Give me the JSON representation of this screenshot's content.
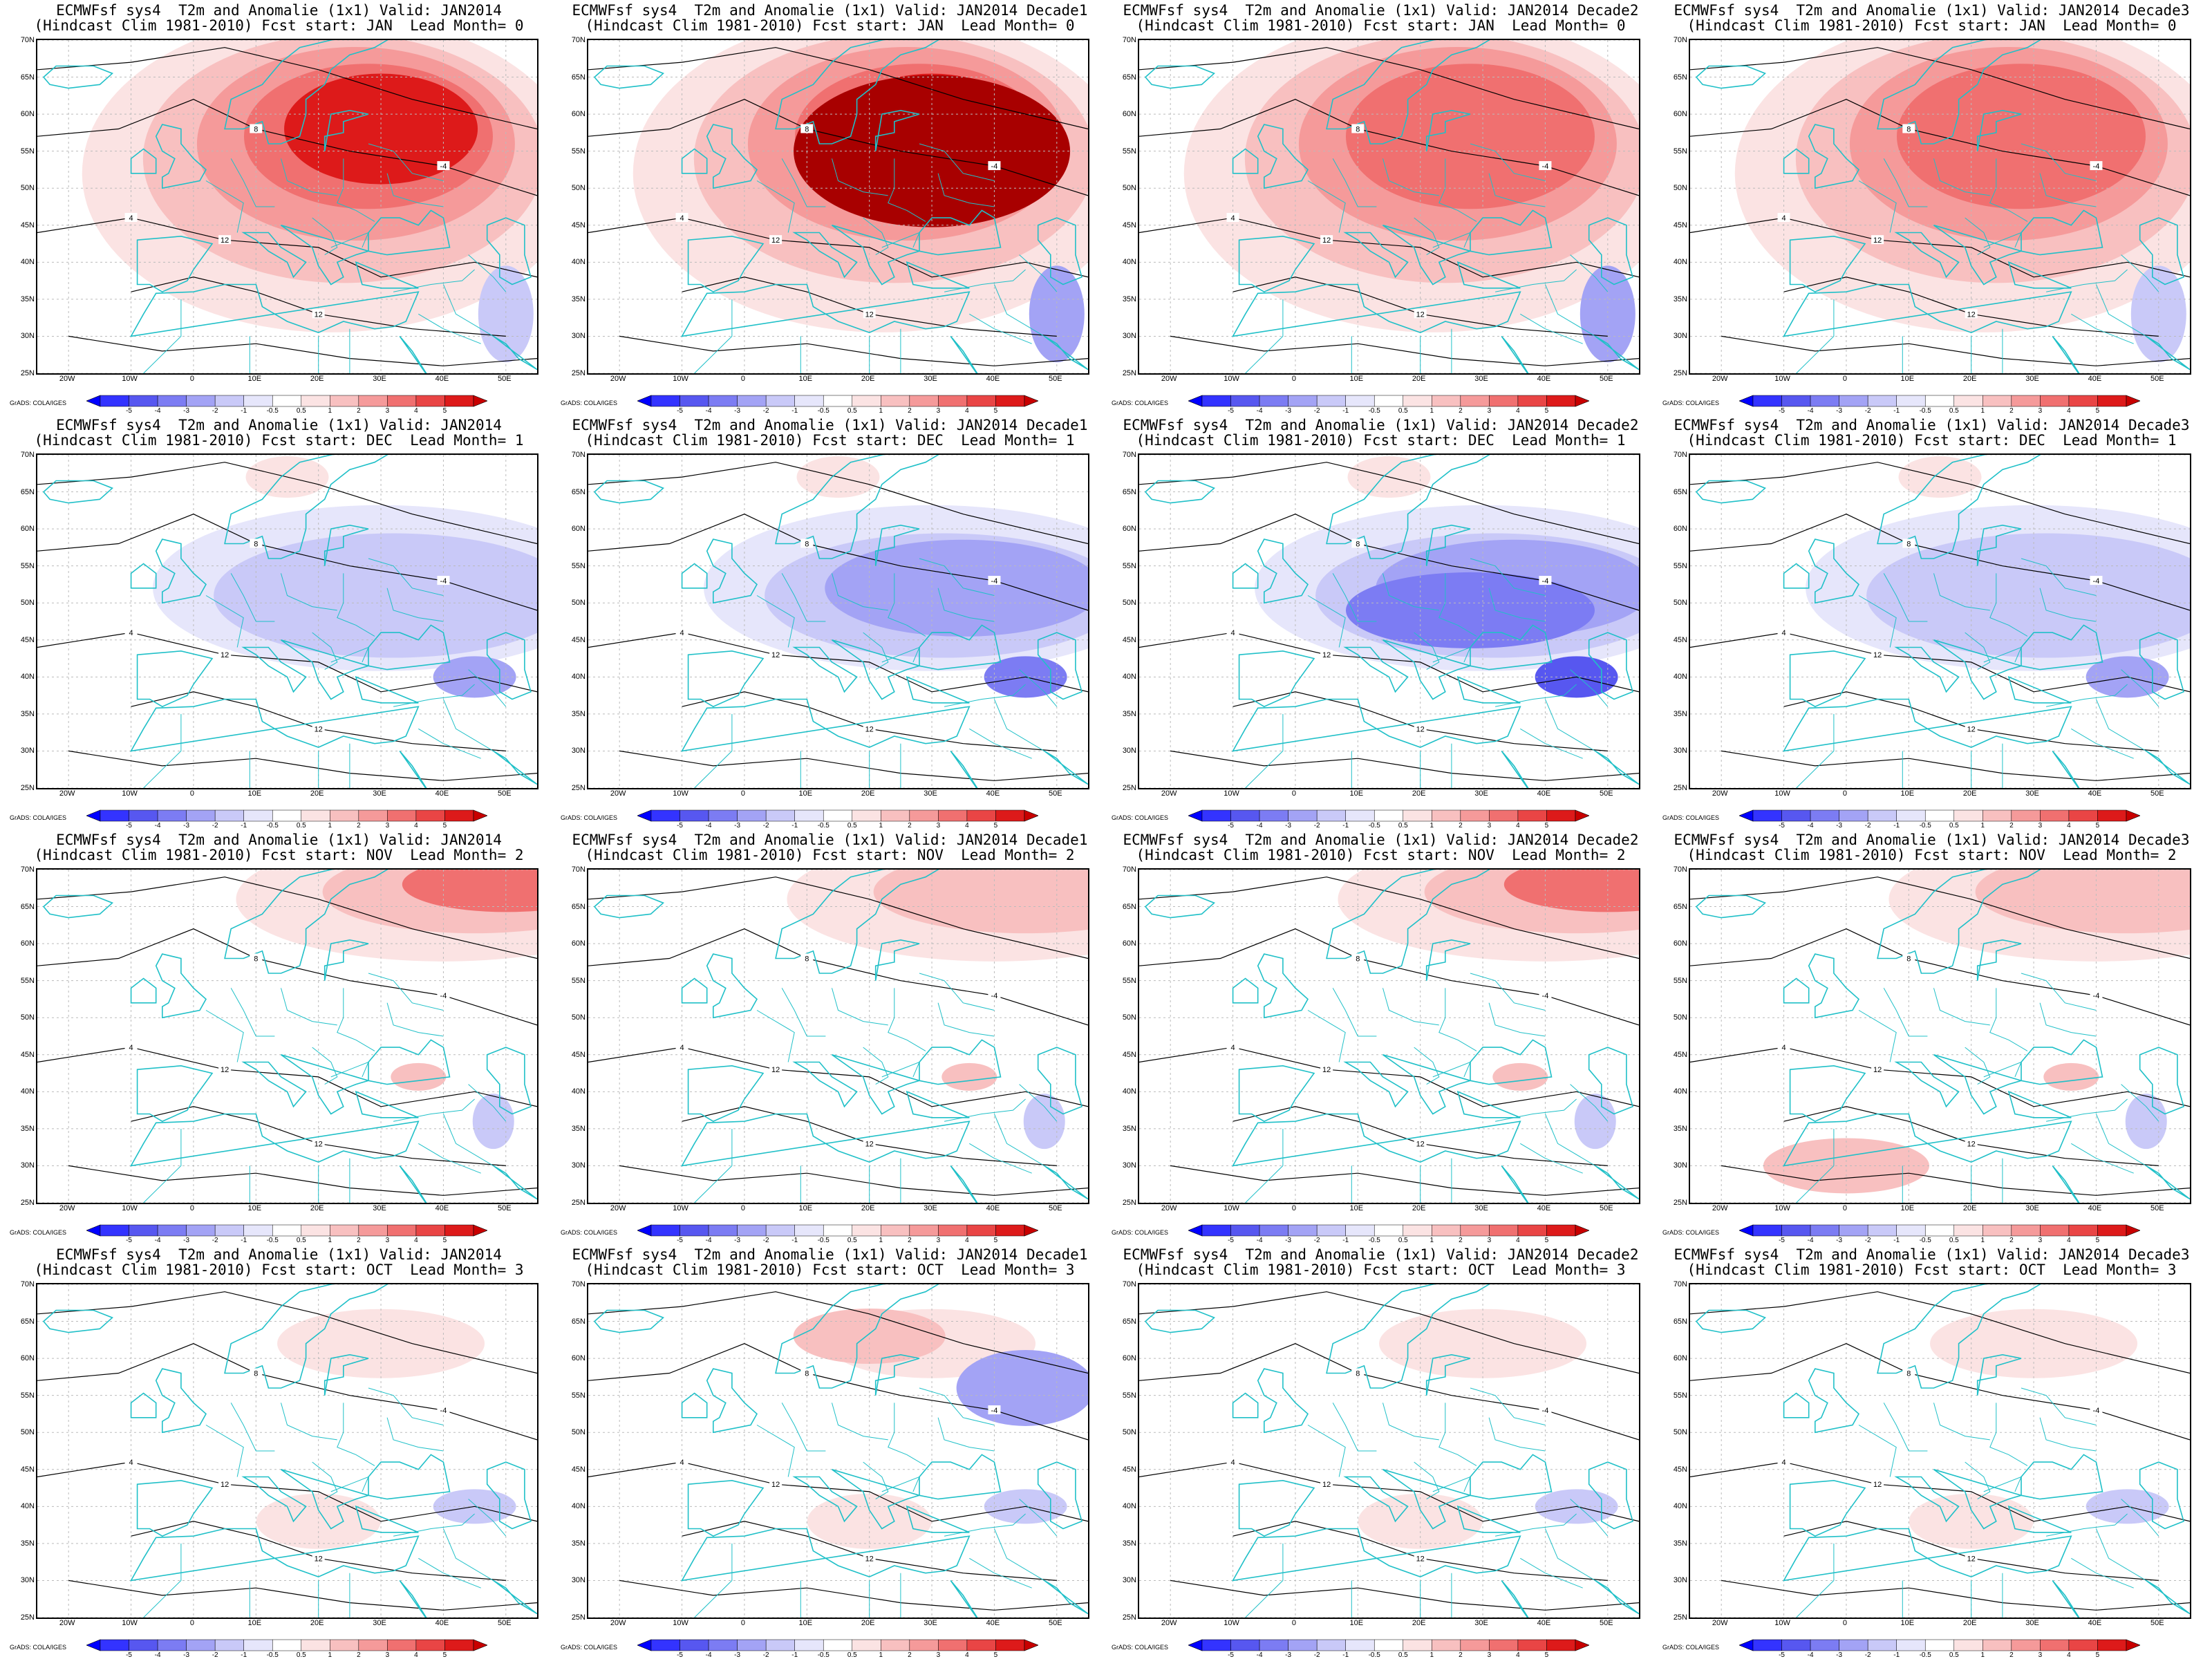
{
  "figure": {
    "panels": [
      {
        "title_line1": "ECMWFsf sys4  T2m and Anomalie (1x1) Valid: JAN2014",
        "title_line2": "(Hindcast Clim 1981-2010) Fcst start: JAN  Lead Month= 0",
        "anomaly_pattern": "strong-warm",
        "warm_level": 4,
        "cold_level": 1
      },
      {
        "title_line1": "ECMWFsf sys4  T2m and Anomalie (1x1) Valid: JAN2014 Decade1",
        "title_line2": "(Hindcast Clim 1981-2010) Fcst start: JAN  Lead Month= 0",
        "anomaly_pattern": "extreme-warm",
        "warm_level": 5,
        "cold_level": 2
      },
      {
        "title_line1": "ECMWFsf sys4  T2m and Anomalie (1x1) Valid: JAN2014 Decade2",
        "title_line2": "(Hindcast Clim 1981-2010) Fcst start: JAN  Lead Month= 0",
        "anomaly_pattern": "warm",
        "warm_level": 3,
        "cold_level": 2
      },
      {
        "title_line1": "ECMWFsf sys4  T2m and Anomalie (1x1) Valid: JAN2014 Decade3",
        "title_line2": "(Hindcast Clim 1981-2010) Fcst start: JAN  Lead Month= 0",
        "anomaly_pattern": "warm",
        "warm_level": 3,
        "cold_level": 1
      },
      {
        "title_line1": "ECMWFsf sys4  T2m and Anomalie (1x1) Valid: JAN2014",
        "title_line2": "(Hindcast Clim 1981-2010) Fcst start: DEC  Lead Month= 1",
        "anomaly_pattern": "cold",
        "warm_level": 1,
        "cold_level": 2
      },
      {
        "title_line1": "ECMWFsf sys4  T2m and Anomalie (1x1) Valid: JAN2014 Decade1",
        "title_line2": "(Hindcast Clim 1981-2010) Fcst start: DEC  Lead Month= 1",
        "anomaly_pattern": "cold",
        "warm_level": 1,
        "cold_level": 3
      },
      {
        "title_line1": "ECMWFsf sys4  T2m and Anomalie (1x1) Valid: JAN2014 Decade2",
        "title_line2": "(Hindcast Clim 1981-2010) Fcst start: DEC  Lead Month= 1",
        "anomaly_pattern": "strong-cold",
        "warm_level": 1,
        "cold_level": 4
      },
      {
        "title_line1": "ECMWFsf sys4  T2m and Anomalie (1x1) Valid: JAN2014 Decade3",
        "title_line2": "(Hindcast Clim 1981-2010) Fcst start: DEC  Lead Month= 1",
        "anomaly_pattern": "weak-cold",
        "warm_level": 1,
        "cold_level": 2
      },
      {
        "title_line1": "ECMWFsf sys4  T2m and Anomalie (1x1) Valid: JAN2014",
        "title_line2": "(Hindcast Clim 1981-2010) Fcst start: NOV  Lead Month= 2",
        "anomaly_pattern": "north-warm",
        "warm_level": 3,
        "cold_level": 1
      },
      {
        "title_line1": "ECMWFsf sys4  T2m and Anomalie (1x1) Valid: JAN2014 Decade1",
        "title_line2": "(Hindcast Clim 1981-2010) Fcst start: NOV  Lead Month= 2",
        "anomaly_pattern": "north-warm",
        "warm_level": 2,
        "cold_level": 1
      },
      {
        "title_line1": "ECMWFsf sys4  T2m and Anomalie (1x1) Valid: JAN2014 Decade2",
        "title_line2": "(Hindcast Clim 1981-2010) Fcst start: NOV  Lead Month= 2",
        "anomaly_pattern": "north-warm",
        "warm_level": 3,
        "cold_level": 1
      },
      {
        "title_line1": "ECMWFsf sys4  T2m and Anomalie (1x1) Valid: JAN2014 Decade3",
        "title_line2": "(Hindcast Clim 1981-2010) Fcst start: NOV  Lead Month= 2",
        "anomaly_pattern": "weak-warm",
        "warm_level": 2,
        "cold_level": 1
      },
      {
        "title_line1": "ECMWFsf sys4  T2m and Anomalie (1x1) Valid: JAN2014",
        "title_line2": "(Hindcast Clim 1981-2010) Fcst start: OCT  Lead Month= 3",
        "anomaly_pattern": "weak-mixed",
        "warm_level": 1,
        "cold_level": 1
      },
      {
        "title_line1": "ECMWFsf sys4  T2m and Anomalie (1x1) Valid: JAN2014 Decade1",
        "title_line2": "(Hindcast Clim 1981-2010) Fcst start: OCT  Lead Month= 3",
        "anomaly_pattern": "mixed",
        "warm_level": 2,
        "cold_level": 2
      },
      {
        "title_line1": "ECMWFsf sys4  T2m and Anomalie (1x1) Valid: JAN2014 Decade2",
        "title_line2": "(Hindcast Clim 1981-2010) Fcst start: OCT  Lead Month= 3",
        "anomaly_pattern": "weak-mixed",
        "warm_level": 1,
        "cold_level": 1
      },
      {
        "title_line1": "ECMWFsf sys4  T2m and Anomalie (1x1) Valid: JAN2014 Decade3",
        "title_line2": "(Hindcast Clim 1981-2010) Fcst start: OCT  Lead Month= 3",
        "anomaly_pattern": "weak-mixed",
        "warm_level": 1,
        "cold_level": 1
      }
    ],
    "lat_labels": [
      "70N",
      "65N",
      "60N",
      "55N",
      "50N",
      "45N",
      "40N",
      "35N",
      "30N",
      "25N"
    ],
    "lon_labels": [
      "20W",
      "10W",
      "0",
      "10E",
      "20E",
      "30E",
      "40E",
      "50E"
    ],
    "colorbar": {
      "labels": [
        "-5",
        "-4",
        "-3",
        "-2",
        "-1",
        "-0.5",
        "0.5",
        "1",
        "2",
        "3",
        "4",
        "5"
      ],
      "colors": [
        "#0000ff",
        "#3333ff",
        "#5757f0",
        "#7c7cf3",
        "#a3a3f5",
        "#c9c9f8",
        "#e6e6fb",
        "#ffffff",
        "#fbe3e3",
        "#f8c0c0",
        "#f59a9a",
        "#f07070",
        "#e94545",
        "#dd1a1a",
        "#c80000"
      ],
      "credit": "GrADS: COLA/IGES"
    },
    "colors": {
      "warm_fill": [
        "#fbe3e3",
        "#f8c0c0",
        "#f59a9a",
        "#f07070",
        "#dd1a1a",
        "#a80000"
      ],
      "cold_fill": [
        "#e6e6fb",
        "#c9c9f8",
        "#a3a3f5",
        "#7c7cf3",
        "#5757f0"
      ],
      "coastline": "#20c0c8",
      "contour": "#000000"
    },
    "contour_labels": [
      "-4",
      "4",
      "8",
      "12"
    ]
  }
}
